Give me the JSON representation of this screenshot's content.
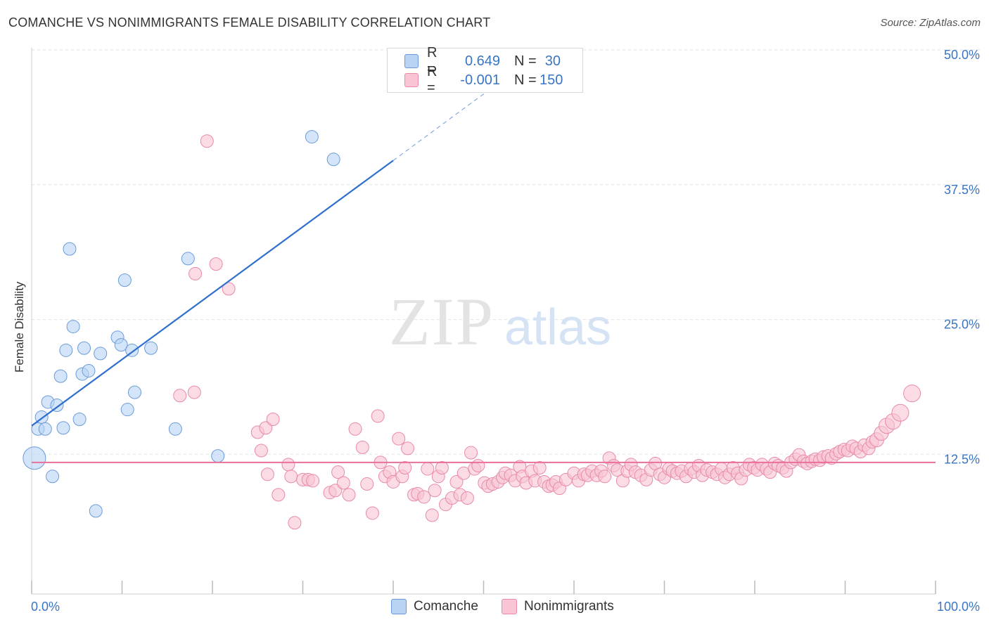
{
  "header": {
    "title": "COMANCHE VS NONIMMIGRANTS FEMALE DISABILITY CORRELATION CHART",
    "source": "Source: ZipAtlas.com"
  },
  "watermark": {
    "zip": "ZIP",
    "atlas": "atlas"
  },
  "legend": {
    "r_label": "R =",
    "n_label": "N =",
    "series": [
      {
        "r": "0.649",
        "n": "30",
        "fill": "#b9d3f5",
        "stroke": "#6a9bd8"
      },
      {
        "r": "-0.001",
        "n": "150",
        "fill": "#f9c4d4",
        "stroke": "#e88aa8"
      }
    ]
  },
  "bottom_legend": [
    "Comanche",
    "Nonimmigrants"
  ],
  "colors": {
    "blue_fill": "#b9d3f5",
    "blue_stroke": "#6a9bd8",
    "blue_line": "#2f6fce",
    "pink_fill": "#f9c4d4",
    "pink_stroke": "#e88aa8",
    "pink_line": "#e8709a",
    "tick_text": "#3a75c4"
  },
  "chart_data": {
    "type": "scatter",
    "title": "COMANCHE VS NONIMMIGRANTS FEMALE DISABILITY CORRELATION CHART",
    "ylabel": "Female Disability",
    "xlabel": "",
    "xlim": [
      0,
      100
    ],
    "ylim": [
      0,
      50
    ],
    "x_tick_labels": [
      "0.0%",
      "100.0%"
    ],
    "y_ticks": [
      12.5,
      25.0,
      37.5,
      50.0
    ],
    "y_tick_labels": [
      "12.5%",
      "25.0%",
      "37.5%",
      "50.0%"
    ],
    "grid": "horizontal dashed",
    "legend_position": "top-center",
    "series": [
      {
        "name": "Comanche",
        "trend": {
          "x0": 0,
          "y0": 15.6,
          "x1": 40,
          "y1": 40.2,
          "dashed_to_x": 52,
          "dashed_to_y": 47.6
        },
        "points": [
          [
            0.3,
            12.6,
            16
          ],
          [
            0.7,
            15.3,
            9
          ],
          [
            1.1,
            16.4,
            9
          ],
          [
            1.5,
            15.3,
            9
          ],
          [
            1.8,
            17.8,
            9
          ],
          [
            2.3,
            10.9,
            9
          ],
          [
            2.8,
            17.5,
            9
          ],
          [
            3.2,
            20.2,
            9
          ],
          [
            3.5,
            15.4,
            9
          ],
          [
            3.8,
            22.6,
            9
          ],
          [
            4.2,
            32.0,
            9
          ],
          [
            4.6,
            24.8,
            9
          ],
          [
            5.3,
            16.2,
            9
          ],
          [
            5.6,
            20.4,
            9
          ],
          [
            5.8,
            22.8,
            9
          ],
          [
            6.3,
            20.7,
            9
          ],
          [
            7.1,
            7.7,
            9
          ],
          [
            7.6,
            22.3,
            9
          ],
          [
            9.5,
            23.8,
            9
          ],
          [
            9.9,
            23.1,
            9
          ],
          [
            10.3,
            29.1,
            9
          ],
          [
            10.6,
            17.1,
            9
          ],
          [
            11.1,
            22.6,
            9
          ],
          [
            11.4,
            18.7,
            9
          ],
          [
            13.2,
            22.8,
            9
          ],
          [
            15.9,
            15.3,
            9
          ],
          [
            17.3,
            31.1,
            9
          ],
          [
            20.6,
            12.8,
            9
          ],
          [
            31.0,
            42.4,
            9
          ],
          [
            33.4,
            40.3,
            9
          ]
        ]
      },
      {
        "name": "Nonimmigrants",
        "trend": {
          "x0": 0,
          "y0": 12.2,
          "x1": 100,
          "y1": 12.2
        },
        "points": [
          [
            18.1,
            29.7,
            9
          ],
          [
            19.4,
            42.0,
            9
          ],
          [
            20.4,
            30.6,
            9
          ],
          [
            21.8,
            28.3,
            9
          ],
          [
            16.4,
            18.4,
            9
          ],
          [
            18.0,
            18.7,
            9
          ],
          [
            25.0,
            15.0,
            9
          ],
          [
            25.4,
            13.3,
            9
          ],
          [
            25.9,
            15.4,
            9
          ],
          [
            26.1,
            11.1,
            9
          ],
          [
            26.7,
            16.2,
            9
          ],
          [
            27.3,
            9.2,
            9
          ],
          [
            28.4,
            12.0,
            9
          ],
          [
            28.7,
            10.9,
            9
          ],
          [
            29.1,
            6.6,
            9
          ],
          [
            30.0,
            10.6,
            9
          ],
          [
            30.6,
            10.6,
            9
          ],
          [
            31.1,
            10.5,
            9
          ],
          [
            33.0,
            9.4,
            9
          ],
          [
            33.6,
            9.6,
            9
          ],
          [
            33.9,
            11.3,
            9
          ],
          [
            34.5,
            10.3,
            9
          ],
          [
            35.1,
            9.2,
            9
          ],
          [
            35.8,
            15.3,
            9
          ],
          [
            36.6,
            13.6,
            9
          ],
          [
            37.1,
            10.2,
            9
          ],
          [
            37.7,
            7.5,
            9
          ],
          [
            38.3,
            16.5,
            9
          ],
          [
            38.6,
            12.2,
            9
          ],
          [
            39.1,
            10.9,
            9
          ],
          [
            39.6,
            11.3,
            9
          ],
          [
            40.0,
            10.4,
            9
          ],
          [
            40.6,
            14.4,
            9
          ],
          [
            41.0,
            10.9,
            9
          ],
          [
            41.3,
            11.7,
            9
          ],
          [
            41.6,
            13.5,
            9
          ],
          [
            42.3,
            9.2,
            9
          ],
          [
            42.7,
            9.3,
            9
          ],
          [
            43.4,
            9.0,
            9
          ],
          [
            43.8,
            11.6,
            9
          ],
          [
            44.3,
            7.3,
            9
          ],
          [
            44.6,
            9.6,
            9
          ],
          [
            45.0,
            10.9,
            9
          ],
          [
            45.4,
            11.7,
            9
          ],
          [
            45.8,
            8.3,
            9
          ],
          [
            46.5,
            8.9,
            9
          ],
          [
            47.0,
            10.4,
            9
          ],
          [
            47.4,
            9.2,
            9
          ],
          [
            47.8,
            11.2,
            9
          ],
          [
            48.2,
            8.9,
            9
          ],
          [
            48.6,
            13.1,
            9
          ],
          [
            49.0,
            11.6,
            9
          ],
          [
            49.4,
            11.9,
            9
          ],
          [
            50.1,
            10.3,
            9
          ],
          [
            50.5,
            10.0,
            9
          ],
          [
            51.0,
            10.2,
            9
          ],
          [
            51.6,
            10.4,
            9
          ],
          [
            52.1,
            10.8,
            9
          ],
          [
            52.4,
            11.2,
            9
          ],
          [
            53.0,
            11.0,
            9
          ],
          [
            53.5,
            10.5,
            9
          ],
          [
            54.0,
            11.8,
            9
          ],
          [
            54.3,
            10.9,
            9
          ],
          [
            54.7,
            10.3,
            9
          ],
          [
            55.3,
            11.4,
            9
          ],
          [
            55.7,
            10.5,
            9
          ],
          [
            56.2,
            11.7,
            9
          ],
          [
            56.7,
            10.4,
            9
          ],
          [
            57.2,
            10.0,
            9
          ],
          [
            57.6,
            10.1,
            9
          ],
          [
            58.0,
            10.4,
            9
          ],
          [
            58.4,
            9.8,
            9
          ],
          [
            59.1,
            10.6,
            9
          ],
          [
            60.0,
            11.2,
            9
          ],
          [
            60.5,
            10.5,
            9
          ],
          [
            61.1,
            11.1,
            9
          ],
          [
            61.5,
            11.0,
            9
          ],
          [
            62.0,
            11.4,
            9
          ],
          [
            62.5,
            11.0,
            9
          ],
          [
            63.0,
            11.4,
            9
          ],
          [
            63.4,
            10.9,
            9
          ],
          [
            63.9,
            12.6,
            9
          ],
          [
            64.4,
            11.9,
            9
          ],
          [
            64.8,
            11.5,
            9
          ],
          [
            65.4,
            10.5,
            9
          ],
          [
            65.9,
            11.4,
            9
          ],
          [
            66.3,
            12.0,
            9
          ],
          [
            66.8,
            11.3,
            9
          ],
          [
            67.4,
            11.0,
            9
          ],
          [
            68.0,
            10.6,
            9
          ],
          [
            68.5,
            11.5,
            9
          ],
          [
            69.0,
            12.1,
            9
          ],
          [
            69.5,
            11.1,
            9
          ],
          [
            70.0,
            10.8,
            9
          ],
          [
            70.5,
            11.6,
            9
          ],
          [
            70.9,
            11.4,
            9
          ],
          [
            71.4,
            11.2,
            9
          ],
          [
            71.9,
            11.4,
            9
          ],
          [
            72.4,
            10.9,
            9
          ],
          [
            72.9,
            11.6,
            9
          ],
          [
            73.3,
            11.3,
            9
          ],
          [
            73.8,
            11.9,
            9
          ],
          [
            74.2,
            11.0,
            9
          ],
          [
            74.7,
            11.5,
            9
          ],
          [
            75.3,
            11.3,
            9
          ],
          [
            75.8,
            11.1,
            9
          ],
          [
            76.3,
            11.6,
            9
          ],
          [
            76.7,
            10.8,
            9
          ],
          [
            77.2,
            11.1,
            9
          ],
          [
            77.6,
            11.7,
            9
          ],
          [
            78.1,
            11.2,
            9
          ],
          [
            78.5,
            10.7,
            9
          ],
          [
            79.0,
            11.5,
            9
          ],
          [
            79.4,
            12.0,
            9
          ],
          [
            79.9,
            11.7,
            9
          ],
          [
            80.3,
            11.5,
            9
          ],
          [
            80.8,
            12.0,
            9
          ],
          [
            81.3,
            11.6,
            9
          ],
          [
            81.7,
            11.3,
            9
          ],
          [
            82.2,
            12.1,
            9
          ],
          [
            82.6,
            11.9,
            9
          ],
          [
            83.1,
            11.7,
            9
          ],
          [
            83.5,
            11.4,
            9
          ],
          [
            84.0,
            12.2,
            9
          ],
          [
            84.5,
            12.5,
            9
          ],
          [
            84.9,
            12.9,
            9
          ],
          [
            85.4,
            12.3,
            9
          ],
          [
            85.8,
            12.1,
            9
          ],
          [
            86.3,
            12.3,
            9
          ],
          [
            86.7,
            12.5,
            9
          ],
          [
            87.2,
            12.4,
            9
          ],
          [
            87.6,
            12.7,
            9
          ],
          [
            88.1,
            12.8,
            9
          ],
          [
            88.5,
            12.6,
            9
          ],
          [
            89.0,
            13.0,
            9
          ],
          [
            89.4,
            13.2,
            9
          ],
          [
            89.9,
            13.4,
            9
          ],
          [
            90.3,
            13.3,
            9
          ],
          [
            90.8,
            13.7,
            9
          ],
          [
            91.2,
            13.5,
            9
          ],
          [
            91.7,
            13.2,
            9
          ],
          [
            92.1,
            13.8,
            9
          ],
          [
            92.6,
            13.5,
            9
          ],
          [
            93.0,
            14.1,
            9
          ],
          [
            93.5,
            14.3,
            10
          ],
          [
            94.0,
            14.9,
            10
          ],
          [
            94.6,
            15.6,
            11
          ],
          [
            95.3,
            16.0,
            11
          ],
          [
            96.1,
            16.8,
            12
          ],
          [
            97.4,
            18.6,
            12
          ]
        ]
      }
    ]
  }
}
